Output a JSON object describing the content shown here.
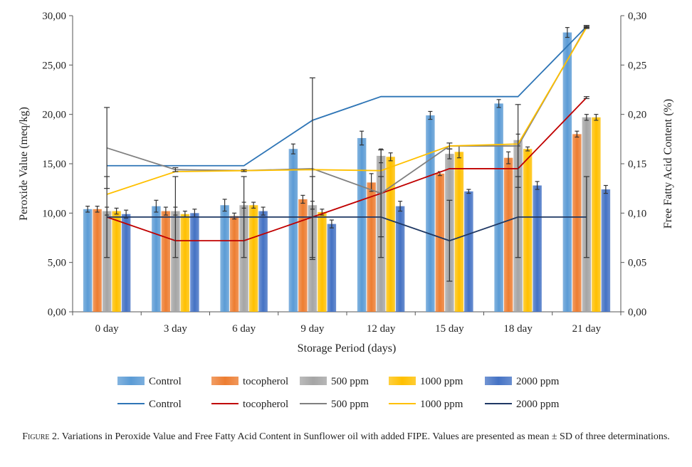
{
  "chart_data": {
    "type": "bar+line",
    "xlabel": "Storage Period (days)",
    "ylabel_left": "Peroxide Value (meq/kg)",
    "ylabel_right": "Free Fatty Acid Content (%)",
    "categories": [
      "0 day",
      "3 day",
      "6 day",
      "9 day",
      "12 day",
      "15 day",
      "18 day",
      "21 day"
    ],
    "ylim_left": [
      0,
      30
    ],
    "yticks_left": [
      "0,00",
      "5,00",
      "10,00",
      "15,00",
      "20,00",
      "25,00",
      "30,00"
    ],
    "ylim_right": [
      0,
      0.3
    ],
    "yticks_right": [
      "0,00",
      "0,05",
      "0,10",
      "0,15",
      "0,20",
      "0,25",
      "0,30"
    ],
    "grid": false,
    "legend_position": "bottom",
    "bar_series": [
      {
        "name": "Control",
        "color": "#5B9BD5",
        "values": [
          10.4,
          10.7,
          10.8,
          16.5,
          17.6,
          19.9,
          21.1,
          28.3
        ],
        "errors": [
          0.3,
          0.6,
          0.6,
          0.5,
          0.7,
          0.4,
          0.4,
          0.5
        ]
      },
      {
        "name": "tocopherol",
        "color": "#ED7D31",
        "values": [
          10.4,
          10.2,
          9.7,
          11.4,
          13.1,
          14.0,
          15.6,
          18.0
        ],
        "errors": [
          0.3,
          0.4,
          0.3,
          0.4,
          0.9,
          0.2,
          0.6,
          0.3
        ]
      },
      {
        "name": "500 ppm",
        "color": "#A5A5A5",
        "values": [
          10.2,
          10.2,
          10.8,
          10.8,
          15.8,
          16.0,
          17.4,
          19.7
        ],
        "errors": [
          0.4,
          0.4,
          0.3,
          0.4,
          0.7,
          0.5,
          0.6,
          0.3
        ]
      },
      {
        "name": "1000 ppm",
        "color": "#FFC000",
        "values": [
          10.2,
          9.9,
          10.8,
          10.1,
          15.7,
          16.2,
          16.5,
          19.7
        ],
        "errors": [
          0.3,
          0.3,
          0.3,
          0.3,
          0.4,
          0.6,
          0.2,
          0.3
        ]
      },
      {
        "name": "2000 ppm",
        "color": "#4472C4",
        "values": [
          9.9,
          10.0,
          10.2,
          8.9,
          10.7,
          12.2,
          12.8,
          12.4
        ],
        "errors": [
          0.4,
          0.4,
          0.4,
          0.4,
          0.5,
          0.2,
          0.4,
          0.4
        ]
      }
    ],
    "line_series": [
      {
        "name": "Control",
        "color": "#2E75B6",
        "values": [
          0.148,
          0.148,
          0.148,
          0.194,
          0.218,
          0.218,
          0.218,
          0.289
        ],
        "errors": [
          0,
          0,
          0,
          0,
          0,
          0,
          0,
          0.001
        ]
      },
      {
        "name": "tocopherol",
        "color": "#C00000",
        "values": [
          0.096,
          0.072,
          0.072,
          0.096,
          0.12,
          0.145,
          0.145,
          0.217
        ],
        "errors": [
          0,
          0,
          0,
          0,
          0,
          0,
          0,
          0.001
        ]
      },
      {
        "name": "500 ppm",
        "color": "#808080",
        "values": [
          0.166,
          0.144,
          0.143,
          0.145,
          0.12,
          0.168,
          0.168,
          0.289
        ],
        "errors": [
          0.041,
          0.002,
          0.001,
          0.092,
          0.044,
          0.003,
          0.042,
          0.001
        ]
      },
      {
        "name": "1000 ppm",
        "color": "#FFC000",
        "values": [
          0.119,
          0.142,
          0.143,
          0.144,
          0.143,
          0.168,
          0.17,
          0.288
        ],
        "errors": [
          0,
          0,
          0,
          0,
          0,
          0,
          0,
          0.001
        ]
      },
      {
        "name": "2000 ppm",
        "color": "#1F3864",
        "values": [
          0.096,
          0.096,
          0.096,
          0.096,
          0.096,
          0.072,
          0.096,
          0.096
        ],
        "errors": [
          0.041,
          0.041,
          0.041,
          0.041,
          0.041,
          0.041,
          0.041,
          0.041
        ]
      }
    ]
  },
  "caption": {
    "label": "Figure 2.",
    "text": "Variations in Peroxide Value and Free Fatty Acid Content  in Sunflower oil with added FIPE. Values are presented as mean ± SD of three determinations."
  }
}
